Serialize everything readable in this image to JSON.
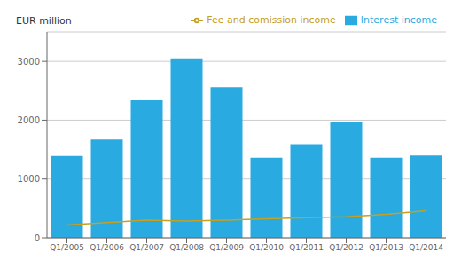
{
  "chart_data": {
    "type": "bar",
    "ylabel": "EUR million",
    "categories": [
      "Q1/2005",
      "Q1/2006",
      "Q1/2007",
      "Q1/2008",
      "Q1/2009",
      "Q1/2010",
      "Q1/2011",
      "Q1/2012",
      "Q1/2013",
      "Q1/2014"
    ],
    "series": [
      {
        "name": "Interest income",
        "type": "bar",
        "color": "#29ABE2",
        "values": [
          1390,
          1670,
          2340,
          3050,
          2560,
          1360,
          1590,
          1960,
          1360,
          1400
        ]
      },
      {
        "name": "Fee and comission income",
        "type": "line",
        "color": "#C8A020",
        "values": [
          220,
          260,
          300,
          285,
          300,
          325,
          345,
          360,
          400,
          460
        ]
      }
    ],
    "ylim": [
      0,
      3500
    ],
    "yticks": [
      0,
      1000,
      2000,
      3000
    ],
    "grid": true,
    "legend": "upper right"
  }
}
